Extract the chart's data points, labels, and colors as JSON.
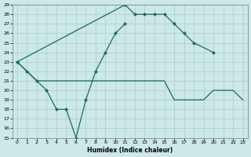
{
  "xlabel": "Humidex (Indice chaleur)",
  "line_color": "#1a6b5a",
  "bg_color": "#cce8e8",
  "grid_color": "#aacccc",
  "ylim": [
    15,
    29
  ],
  "xlim": [
    -0.5,
    23.5
  ],
  "yticks": [
    15,
    16,
    17,
    18,
    19,
    20,
    21,
    22,
    23,
    24,
    25,
    26,
    27,
    28,
    29
  ],
  "xticks": [
    0,
    1,
    2,
    3,
    4,
    5,
    6,
    7,
    8,
    9,
    10,
    11,
    12,
    13,
    14,
    15,
    16,
    17,
    18,
    19,
    20,
    21,
    22,
    23
  ],
  "series1_x": [
    0,
    1,
    2,
    3,
    4,
    5,
    6,
    7,
    8,
    9,
    10,
    11
  ],
  "series1_y": [
    23,
    22,
    21,
    20,
    18,
    18,
    15,
    19,
    22,
    24,
    26,
    27
  ],
  "series2_x": [
    0,
    11,
    12,
    13,
    14,
    15,
    16,
    17,
    18,
    20
  ],
  "series2_y": [
    23,
    29,
    28,
    28,
    28,
    28,
    27,
    26,
    25,
    24
  ],
  "series3_x": [
    0,
    1,
    2,
    3,
    4,
    5,
    6,
    7,
    8,
    9,
    10,
    11,
    12,
    13,
    14,
    15,
    16,
    17,
    18,
    19,
    20,
    21,
    22,
    23
  ],
  "series3_y": [
    23,
    22,
    21,
    21,
    21,
    21,
    21,
    21,
    21,
    21,
    21,
    21,
    21,
    21,
    21,
    21,
    19,
    19,
    19,
    19,
    20,
    20,
    20,
    19
  ]
}
